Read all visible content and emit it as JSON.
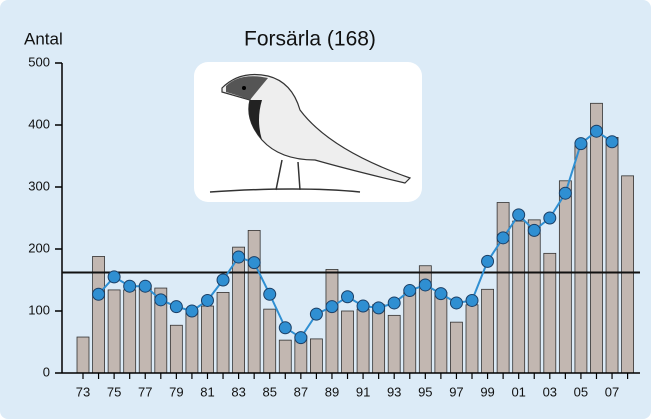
{
  "chart_data": {
    "type": "bar",
    "title": "Forsärla (168)",
    "y_label": "Antal",
    "categories": [
      "73",
      null,
      "75",
      null,
      "77",
      null,
      "79",
      null,
      "81",
      null,
      "83",
      null,
      "85",
      null,
      "87",
      null,
      "89",
      null,
      "91",
      null,
      "93",
      null,
      "95",
      null,
      "97",
      null,
      "99",
      null,
      "01",
      null,
      "03",
      null,
      "05",
      null,
      "07",
      null
    ],
    "values": [
      58,
      188,
      134,
      134,
      142,
      137,
      77,
      100,
      108,
      130,
      203,
      230,
      103,
      53,
      60,
      55,
      167,
      100,
      103,
      110,
      93,
      130,
      173,
      130,
      82,
      110,
      135,
      275,
      245,
      247,
      193,
      310,
      370,
      435,
      380,
      318
    ],
    "color": "#c2b7b1",
    "line": {
      "color": "#2f8fd2",
      "values": [
        null,
        127,
        155,
        140,
        140,
        118,
        107,
        100,
        117,
        150,
        187,
        178,
        127,
        73,
        57,
        95,
        107,
        123,
        108,
        105,
        113,
        133,
        142,
        128,
        113,
        117,
        180,
        218,
        255,
        230,
        250,
        290,
        370,
        390,
        373,
        null
      ]
    },
    "hline": 162,
    "ylim": [
      0,
      500
    ],
    "yticks": [
      0,
      100,
      200,
      300,
      400,
      500
    ],
    "grid": false
  }
}
